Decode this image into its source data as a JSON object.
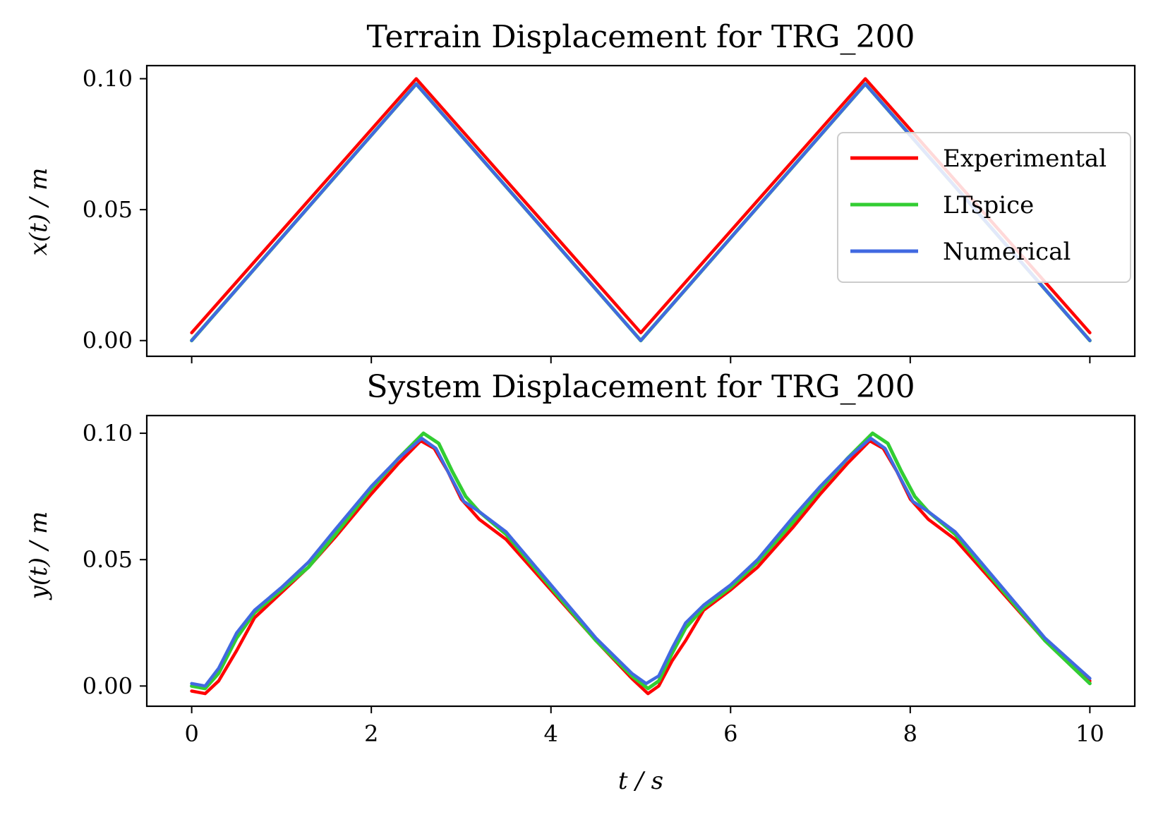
{
  "colors": {
    "experimental": "#ff0000",
    "ltspice": "#32cd32",
    "numerical": "#4169e1"
  },
  "chart_data": [
    {
      "type": "line",
      "title": "Terrain Displacement for TRG_200",
      "xlabel": "",
      "ylabel": "x(t) / m",
      "xlim": [
        -0.5,
        10.5
      ],
      "ylim": [
        -0.006,
        0.105
      ],
      "xticks": [
        0,
        2,
        4,
        6,
        8,
        10
      ],
      "xticklabels": [
        "",
        "",
        "",
        "",
        "",
        ""
      ],
      "yticks": [
        0.0,
        0.05,
        0.1
      ],
      "yticklabels": [
        "0.00",
        "0.05",
        "0.10"
      ],
      "grid": false,
      "legend": "center-right",
      "series": [
        {
          "name": "Experimental",
          "color": "#ff0000",
          "x": [
            0,
            2.5,
            5.0,
            7.5,
            10.0
          ],
          "y": [
            0.003,
            0.1,
            0.003,
            0.1,
            0.003
          ]
        },
        {
          "name": "LTspice",
          "color": "#32cd32",
          "x": [
            0,
            2.5,
            5.0,
            7.5,
            10.0
          ],
          "y": [
            0.0,
            0.098,
            0.0,
            0.098,
            0.0
          ]
        },
        {
          "name": "Numerical",
          "color": "#4169e1",
          "x": [
            0,
            2.5,
            5.0,
            7.5,
            10.0
          ],
          "y": [
            0.0,
            0.098,
            0.0,
            0.098,
            0.0
          ]
        }
      ]
    },
    {
      "type": "line",
      "title": "System Displacement for TRG_200",
      "xlabel": "t / s",
      "ylabel": "y(t) / m",
      "xlim": [
        -0.5,
        10.5
      ],
      "ylim": [
        -0.008,
        0.107
      ],
      "xticks": [
        0,
        2,
        4,
        6,
        8,
        10
      ],
      "xticklabels": [
        "0",
        "2",
        "4",
        "6",
        "8",
        "10"
      ],
      "yticks": [
        0.0,
        0.05,
        0.1
      ],
      "yticklabels": [
        "0.00",
        "0.05",
        "0.10"
      ],
      "grid": false,
      "series": [
        {
          "name": "Experimental",
          "color": "#ff0000",
          "x": [
            0,
            0.15,
            0.3,
            0.5,
            0.7,
            1.0,
            1.3,
            1.6,
            2.0,
            2.3,
            2.55,
            2.7,
            2.85,
            3.0,
            3.2,
            3.5,
            4.0,
            4.5,
            4.9,
            5.08,
            5.2,
            5.35,
            5.5,
            5.7,
            6.0,
            6.3,
            6.7,
            7.0,
            7.3,
            7.55,
            7.7,
            7.85,
            8.0,
            8.2,
            8.5,
            9.0,
            9.5,
            10.0
          ],
          "y": [
            -0.002,
            -0.003,
            0.002,
            0.014,
            0.027,
            0.037,
            0.047,
            0.059,
            0.076,
            0.088,
            0.097,
            0.094,
            0.085,
            0.074,
            0.066,
            0.058,
            0.038,
            0.018,
            0.003,
            -0.003,
            0.0,
            0.01,
            0.018,
            0.03,
            0.038,
            0.047,
            0.063,
            0.076,
            0.088,
            0.097,
            0.094,
            0.085,
            0.074,
            0.066,
            0.058,
            0.038,
            0.018,
            0.002
          ]
        },
        {
          "name": "LTspice",
          "color": "#32cd32",
          "x": [
            0,
            0.15,
            0.3,
            0.5,
            0.7,
            1.0,
            1.3,
            1.6,
            2.0,
            2.3,
            2.58,
            2.75,
            2.9,
            3.05,
            3.2,
            3.5,
            4.0,
            4.5,
            4.9,
            5.08,
            5.2,
            5.35,
            5.5,
            5.7,
            6.0,
            6.3,
            6.7,
            7.0,
            7.3,
            7.58,
            7.75,
            7.9,
            8.05,
            8.2,
            8.5,
            9.0,
            9.5,
            10.0
          ],
          "y": [
            0.0,
            -0.001,
            0.005,
            0.019,
            0.029,
            0.038,
            0.047,
            0.06,
            0.078,
            0.09,
            0.1,
            0.096,
            0.085,
            0.075,
            0.069,
            0.06,
            0.039,
            0.018,
            0.004,
            -0.001,
            0.002,
            0.013,
            0.023,
            0.031,
            0.039,
            0.049,
            0.065,
            0.078,
            0.09,
            0.1,
            0.096,
            0.085,
            0.075,
            0.069,
            0.06,
            0.039,
            0.018,
            0.001
          ]
        },
        {
          "name": "Numerical",
          "color": "#4169e1",
          "x": [
            0,
            0.15,
            0.3,
            0.5,
            0.7,
            1.0,
            1.3,
            1.6,
            2.0,
            2.3,
            2.56,
            2.72,
            2.88,
            3.03,
            3.2,
            3.5,
            4.0,
            4.5,
            4.9,
            5.06,
            5.2,
            5.35,
            5.5,
            5.7,
            6.0,
            6.3,
            6.7,
            7.0,
            7.3,
            7.56,
            7.72,
            7.88,
            8.03,
            8.2,
            8.5,
            9.0,
            9.5,
            10.0
          ],
          "y": [
            0.001,
            0.0,
            0.007,
            0.021,
            0.03,
            0.039,
            0.049,
            0.062,
            0.079,
            0.09,
            0.098,
            0.094,
            0.083,
            0.073,
            0.069,
            0.061,
            0.04,
            0.019,
            0.005,
            0.001,
            0.004,
            0.015,
            0.025,
            0.032,
            0.04,
            0.05,
            0.067,
            0.079,
            0.09,
            0.098,
            0.094,
            0.083,
            0.073,
            0.069,
            0.061,
            0.04,
            0.019,
            0.003
          ]
        }
      ]
    }
  ]
}
